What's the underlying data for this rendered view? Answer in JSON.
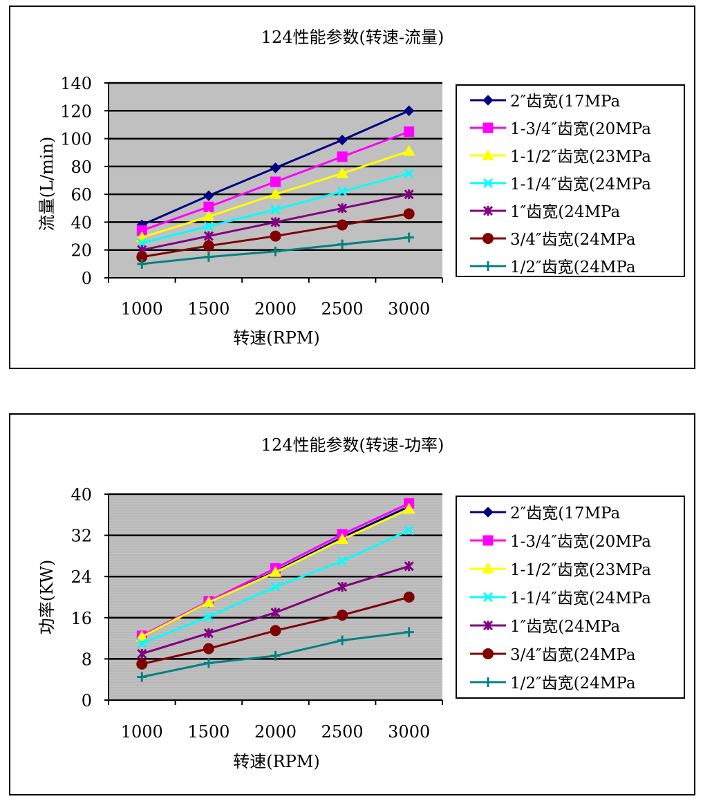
{
  "chart_data": [
    {
      "type": "line",
      "title": "124性能参数(转速-流量)",
      "xlabel": "转速(RPM)",
      "ylabel": "流量(L/min)",
      "categories": [
        "1000",
        "1500",
        "2000",
        "2500",
        "3000"
      ],
      "ylim": [
        0,
        140
      ],
      "yticks": [
        "0",
        "20",
        "40",
        "60",
        "80",
        "100",
        "120",
        "140"
      ],
      "minor_grid": false,
      "legend_position": "right",
      "series": [
        {
          "name": "2″齿宽(17MPa",
          "color": "#000080",
          "marker": "diamond",
          "values": [
            38,
            59,
            79,
            99,
            120
          ]
        },
        {
          "name": "1-3/4″齿宽(20MPa",
          "color": "#FF00FF",
          "marker": "square",
          "values": [
            34,
            51,
            69,
            87,
            105
          ]
        },
        {
          "name": "1-1/2″齿宽(23MPa",
          "color": "#FFFF00",
          "marker": "triangle",
          "values": [
            29,
            44,
            60,
            75,
            91
          ]
        },
        {
          "name": "1-1/4″齿宽(24MPa",
          "color": "#00FFFF",
          "marker": "x",
          "values": [
            25,
            37,
            49,
            62,
            75
          ]
        },
        {
          "name": "1″齿宽(24MPa",
          "color": "#800080",
          "marker": "star",
          "values": [
            20,
            30,
            40,
            50,
            60
          ]
        },
        {
          "name": "3/4″齿宽(24MPa",
          "color": "#800000",
          "marker": "circle",
          "values": [
            15,
            23,
            30,
            38,
            46
          ]
        },
        {
          "name": "1/2″齿宽(24MPa",
          "color": "#008080",
          "marker": "plus",
          "values": [
            10,
            15,
            19,
            24,
            29
          ]
        }
      ]
    },
    {
      "type": "line",
      "title": "124性能参数(转速-功率)",
      "xlabel": "转速(RPM)",
      "ylabel": "功率(KW)",
      "categories": [
        "1000",
        "1500",
        "2000",
        "2500",
        "3000"
      ],
      "ylim": [
        0,
        40
      ],
      "yticks": [
        "0",
        "8",
        "16",
        "24",
        "32",
        "40"
      ],
      "minor_grid": true,
      "legend_position": "right",
      "series": [
        {
          "name": "2″齿宽(17MPa",
          "color": "#000080",
          "marker": "diamond",
          "values": [
            12.3,
            19.0,
            25.0,
            31.6,
            37.6
          ]
        },
        {
          "name": "1-3/4″齿宽(20MPa",
          "color": "#FF00FF",
          "marker": "square",
          "values": [
            12.5,
            19.2,
            25.6,
            32.2,
            38.2
          ]
        },
        {
          "name": "1-1/2″齿宽(23MPa",
          "color": "#FFFF00",
          "marker": "triangle",
          "values": [
            12.3,
            19.0,
            24.8,
            31.2,
            37.1
          ]
        },
        {
          "name": "1-1/4″齿宽(24MPa",
          "color": "#00FFFF",
          "marker": "x",
          "values": [
            11.0,
            16.2,
            22.0,
            27.0,
            33.0
          ]
        },
        {
          "name": "1″齿宽(24MPa",
          "color": "#800080",
          "marker": "star",
          "values": [
            9.0,
            13.0,
            17.0,
            22.0,
            26.0
          ]
        },
        {
          "name": "3/4″齿宽(24MPa",
          "color": "#800000",
          "marker": "circle",
          "values": [
            7.0,
            10.0,
            13.5,
            16.5,
            20.0
          ]
        },
        {
          "name": "1/2″齿宽(24MPa",
          "color": "#008080",
          "marker": "plus",
          "values": [
            4.5,
            7.2,
            8.6,
            11.6,
            13.2
          ]
        }
      ]
    }
  ]
}
